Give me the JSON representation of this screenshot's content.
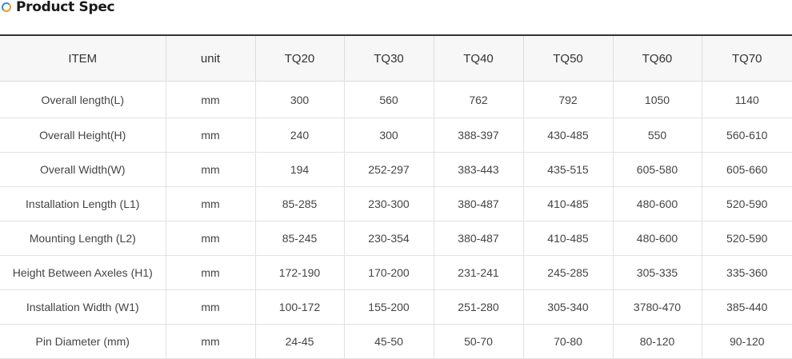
{
  "section": {
    "title": "Product Spec",
    "icon": "ring-icon"
  },
  "table": {
    "headers": [
      "ITEM",
      "unit",
      "TQ20",
      "TQ30",
      "TQ40",
      "TQ50",
      "TQ60",
      "TQ70"
    ],
    "rows": [
      [
        "Overall length(L)",
        "mm",
        "300",
        "560",
        "762",
        "792",
        "1050",
        "1140"
      ],
      [
        "Overall Height(H)",
        "mm",
        "240",
        "300",
        "388-397",
        "430-485",
        "550",
        "560-610"
      ],
      [
        "Overall Width(W)",
        "mm",
        "194",
        "252-297",
        "383-443",
        "435-515",
        "605-580",
        "605-660"
      ],
      [
        "Installation Length (L1)",
        "mm",
        "85-285",
        "230-300",
        "380-487",
        "410-485",
        "480-600",
        "520-590"
      ],
      [
        "Mounting Length (L2)",
        "mm",
        "85-245",
        "230-354",
        "380-487",
        "410-485",
        "480-600",
        "520-590"
      ],
      [
        "Height Between Axeles (H1)",
        "mm",
        "172-190",
        "170-200",
        "231-241",
        "245-285",
        "305-335",
        "335-360"
      ],
      [
        "Installation Width (W1)",
        "mm",
        "100-172",
        "155-200",
        "251-280",
        "305-340",
        "3780-470",
        "385-440"
      ],
      [
        "Pin Diameter (mm)",
        "mm",
        "24-45",
        "45-50",
        "50-70",
        "70-80",
        "80-120",
        "90-120"
      ]
    ]
  },
  "colors": {
    "header_bg": "#f7f7f7",
    "border_top": "#333333",
    "icon_blue": "#2d8fd6",
    "icon_orange": "#f29c1f"
  }
}
